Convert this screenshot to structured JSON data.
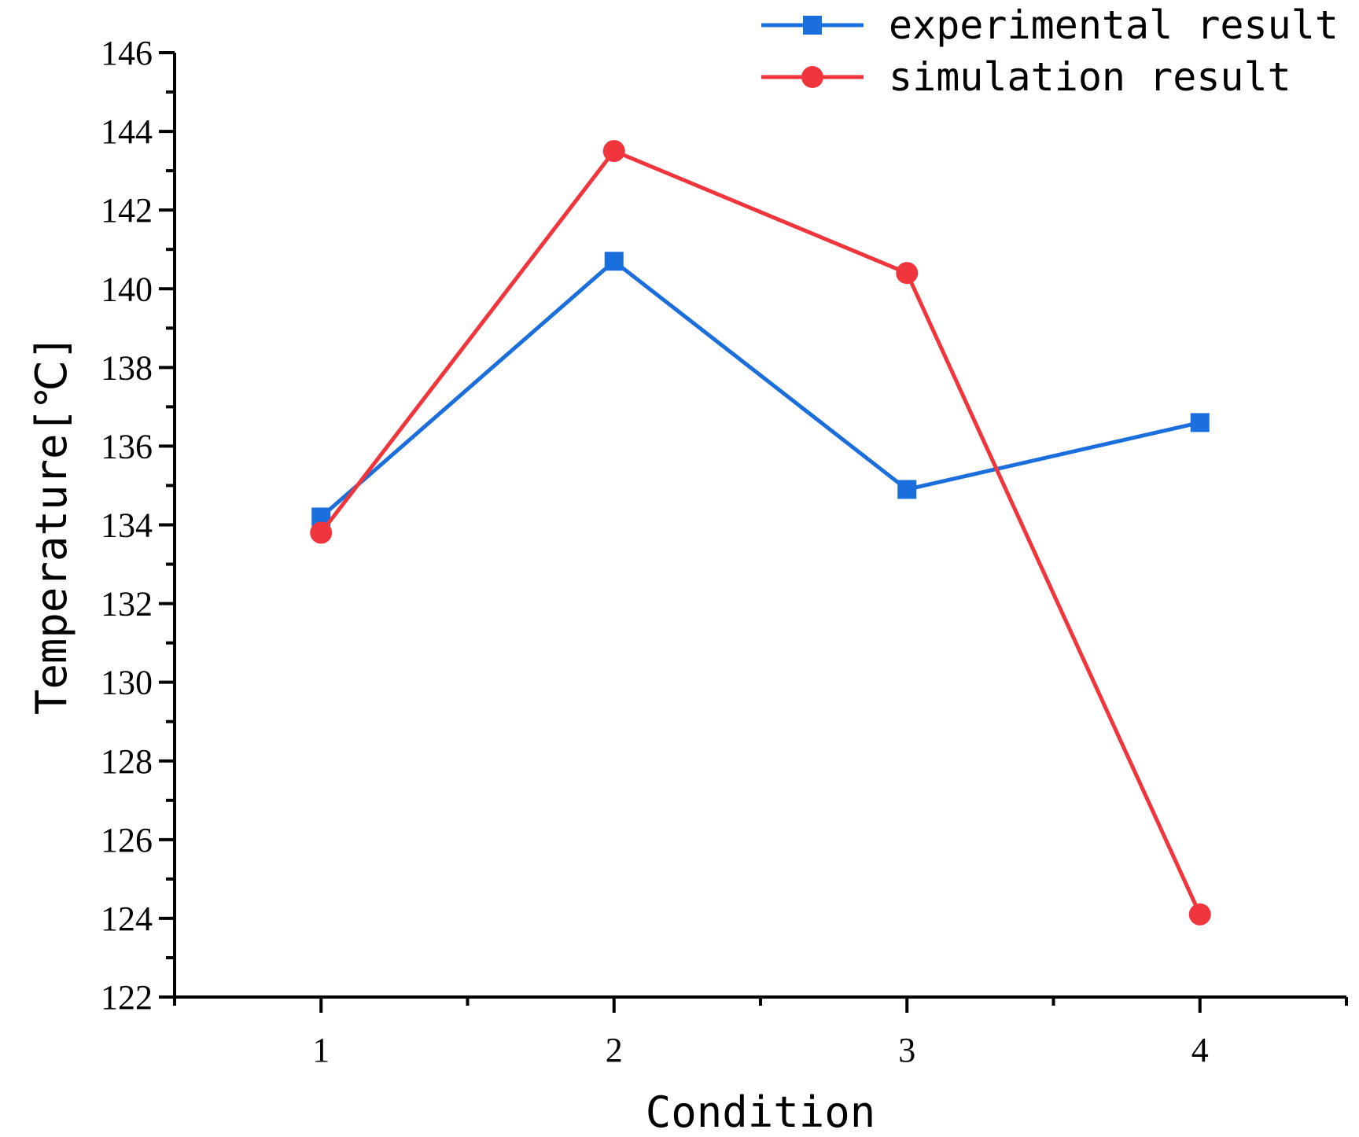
{
  "chart_data": {
    "type": "line",
    "title": "",
    "xlabel": "Condition",
    "ylabel": "Temperature[℃]",
    "x": [
      1,
      2,
      3,
      4
    ],
    "x_tick_labels": [
      "1",
      "2",
      "3",
      "4"
    ],
    "xlim": [
      0.5,
      4.5
    ],
    "ylim": [
      122,
      146
    ],
    "y_ticks": [
      122,
      124,
      126,
      128,
      130,
      132,
      134,
      136,
      138,
      140,
      142,
      144,
      146
    ],
    "y_tick_labels": [
      "122",
      "124",
      "126",
      "128",
      "130",
      "132",
      "134",
      "136",
      "138",
      "140",
      "142",
      "144",
      "146"
    ],
    "grid": false,
    "legend_position": "top-right",
    "series": [
      {
        "name": "experimental result",
        "values": [
          134.2,
          140.7,
          134.9,
          136.6
        ],
        "color": "#1a6fdd",
        "marker": "square"
      },
      {
        "name": "simulation result",
        "values": [
          133.8,
          143.5,
          140.4,
          124.1
        ],
        "color": "#f0363c",
        "marker": "circle"
      }
    ]
  }
}
